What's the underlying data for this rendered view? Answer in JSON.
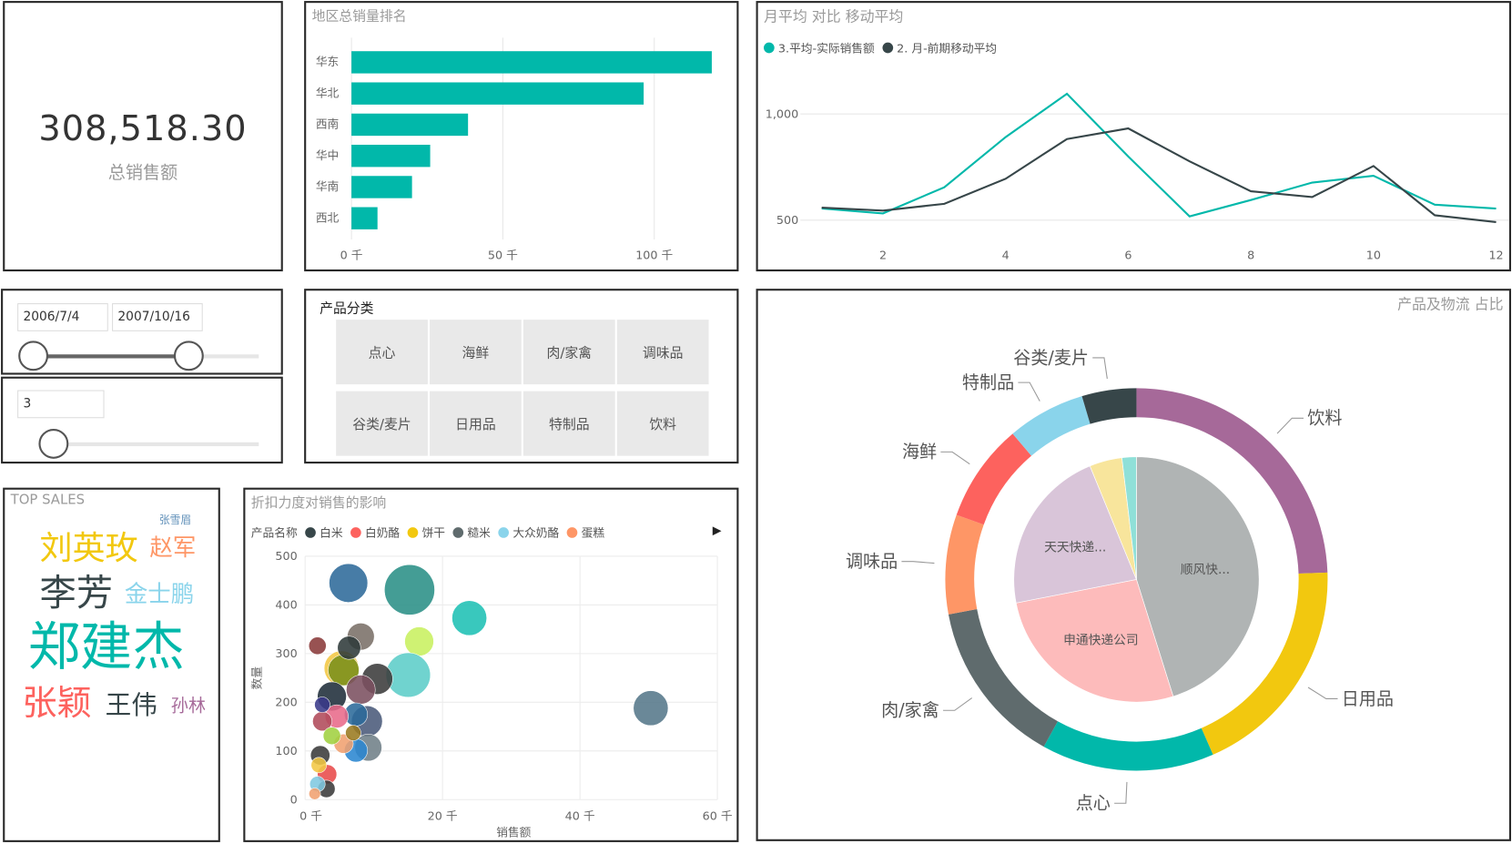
{
  "kpi": {
    "value": "308,518.30",
    "label": "总销售额"
  },
  "date_slicer": {
    "start": "2006/7/4",
    "end": "2007/10/16",
    "start_fraction": 0.0,
    "end_fraction": 0.69
  },
  "number_slicer": {
    "value": "3",
    "fraction": 0.09
  },
  "category_slicer": {
    "title": "产品分类",
    "items": [
      "点心",
      "海鲜",
      "肉/家禽",
      "调味品",
      "谷类/麦片",
      "日用品",
      "特制品",
      "饮料"
    ]
  },
  "top_sales": {
    "title": "TOP SALES",
    "words": [
      {
        "text": "郑建杰",
        "weight": 54,
        "color": "#01b8aa"
      },
      {
        "text": "李芳",
        "weight": 38,
        "color": "#374649"
      },
      {
        "text": "张颖",
        "weight": 36,
        "color": "#fd625e"
      },
      {
        "text": "刘英玫",
        "weight": 34,
        "color": "#f2c80f"
      },
      {
        "text": "王伟",
        "weight": 27,
        "color": "#374649"
      },
      {
        "text": "金士鹏",
        "weight": 24,
        "color": "#8ad4eb"
      },
      {
        "text": "赵军",
        "weight": 24,
        "color": "#fe9666"
      },
      {
        "text": "孙林",
        "weight": 18,
        "color": "#a66999"
      },
      {
        "text": "张雪眉",
        "weight": 11,
        "color": "#5f8fb8"
      }
    ]
  },
  "chart_data": [
    {
      "id": "region",
      "type": "bar",
      "title": "地区总销量排名",
      "orientation": "horizontal",
      "categories": [
        "华东",
        "华北",
        "西南",
        "华中",
        "华南",
        "西北"
      ],
      "values": [
        119000,
        96500,
        38500,
        26000,
        20000,
        8600
      ],
      "xlim": [
        0,
        125000
      ],
      "xticks": [
        0,
        50000,
        100000
      ],
      "xtick_labels": [
        "0 千",
        "50 千",
        "100 千"
      ],
      "color": "#01b8aa"
    },
    {
      "id": "monthly",
      "type": "line",
      "title": "月平均 对比 移动平均",
      "x": [
        1,
        2,
        3,
        4,
        5,
        6,
        7,
        8,
        9,
        10,
        11,
        12
      ],
      "series": [
        {
          "name": "3.平均-实际销售额",
          "color": "#01b8aa",
          "values": [
            555,
            532,
            655,
            891,
            1095,
            800,
            518,
            595,
            677,
            709,
            573,
            555
          ]
        },
        {
          "name": "2. 月-前期移动平均",
          "color": "#374649",
          "values": [
            559,
            545,
            577,
            695,
            882,
            932,
            777,
            636,
            609,
            755,
            523,
            491
          ]
        }
      ],
      "xticks": [
        2,
        4,
        6,
        8,
        10,
        12
      ],
      "xtick_labels": [
        "2",
        "4",
        "6",
        "8",
        "10",
        "12"
      ],
      "yticks": [
        500,
        1000
      ],
      "ytick_labels": [
        "500",
        "1,000"
      ],
      "ylim": [
        414,
        1255
      ],
      "grid": true,
      "legend": "top-left"
    },
    {
      "id": "discount",
      "type": "scatter",
      "title": "折扣力度对销售的影响",
      "xlabel": "销售额",
      "ylabel": "数量",
      "legend_title": "产品名称",
      "legend": [
        {
          "name": "白米",
          "color": "#374649"
        },
        {
          "name": "白奶酪",
          "color": "#fd625e"
        },
        {
          "name": "饼干",
          "color": "#f2c80f"
        },
        {
          "name": "糙米",
          "color": "#5f6b6d"
        },
        {
          "name": "大众奶酪",
          "color": "#8ad4eb"
        },
        {
          "name": "蛋糕",
          "color": "#fe9666"
        }
      ],
      "xlim": [
        0,
        60000
      ],
      "ylim": [
        0,
        500
      ],
      "xticks": [
        0,
        20000,
        40000,
        60000
      ],
      "xtick_labels": [
        "0 千",
        "20 千",
        "40 千",
        "60 千"
      ],
      "yticks": [
        0,
        100,
        200,
        300,
        400,
        500
      ],
      "ytick_labels": [
        "0",
        "100",
        "200",
        "300",
        "400",
        "500"
      ],
      "points": [
        {
          "x": 6300,
          "y": 445,
          "size": 20,
          "color": "#2e6a9a"
        },
        {
          "x": 15200,
          "y": 431,
          "size": 26,
          "color": "#2a8f86"
        },
        {
          "x": 23900,
          "y": 373,
          "size": 18,
          "color": "#1ec0b4"
        },
        {
          "x": 16600,
          "y": 325,
          "size": 15,
          "color": "#c8f060"
        },
        {
          "x": 15000,
          "y": 256,
          "size": 23,
          "color": "#5ccdc8"
        },
        {
          "x": 8100,
          "y": 335,
          "size": 14,
          "color": "#7a7068"
        },
        {
          "x": 5300,
          "y": 270,
          "size": 18,
          "color": "#f2c744"
        },
        {
          "x": 5600,
          "y": 266,
          "size": 16,
          "color": "#7a8f1a"
        },
        {
          "x": 6400,
          "y": 312,
          "size": 12,
          "color": "#2f3a3a"
        },
        {
          "x": 10500,
          "y": 248,
          "size": 16,
          "color": "#3b3b3b"
        },
        {
          "x": 8100,
          "y": 226,
          "size": 15,
          "color": "#7b5060"
        },
        {
          "x": 1800,
          "y": 316,
          "size": 9,
          "color": "#8a3a3a"
        },
        {
          "x": 50300,
          "y": 188,
          "size": 18,
          "color": "#55788a"
        },
        {
          "x": 3900,
          "y": 212,
          "size": 15,
          "color": "#1f2d3a"
        },
        {
          "x": 9000,
          "y": 161,
          "size": 16,
          "color": "#4a5a7a"
        },
        {
          "x": 7400,
          "y": 175,
          "size": 12,
          "color": "#2b6a9a"
        },
        {
          "x": 4600,
          "y": 171,
          "size": 12,
          "color": "#e86a8a"
        },
        {
          "x": 9200,
          "y": 107,
          "size": 14,
          "color": "#6f7f88"
        },
        {
          "x": 7400,
          "y": 101,
          "size": 12,
          "color": "#2a86d0"
        },
        {
          "x": 5600,
          "y": 115,
          "size": 10,
          "color": "#f0a070"
        },
        {
          "x": 7000,
          "y": 137,
          "size": 8,
          "color": "#9a7a20"
        },
        {
          "x": 2500,
          "y": 161,
          "size": 10,
          "color": "#b04a5a"
        },
        {
          "x": 3900,
          "y": 131,
          "size": 9,
          "color": "#a0d040"
        },
        {
          "x": 2200,
          "y": 91,
          "size": 10,
          "color": "#3a3a3a"
        },
        {
          "x": 3200,
          "y": 52,
          "size": 10,
          "color": "#e84a4a"
        },
        {
          "x": 3100,
          "y": 22,
          "size": 9,
          "color": "#3a3a3a"
        },
        {
          "x": 1800,
          "y": 32,
          "size": 8,
          "color": "#80c8e0"
        },
        {
          "x": 1400,
          "y": 12,
          "size": 6,
          "color": "#f0a070"
        },
        {
          "x": 2500,
          "y": 195,
          "size": 8,
          "color": "#3a3a8a"
        },
        {
          "x": 2000,
          "y": 71,
          "size": 8,
          "color": "#f2c744"
        }
      ]
    },
    {
      "id": "share",
      "type": "pie",
      "title": "产品及物流 占比",
      "outer_ring": [
        {
          "name": "饮料",
          "value": 24.4,
          "color": "#a66999"
        },
        {
          "name": "日用品",
          "value": 19.0,
          "color": "#f2c80f"
        },
        {
          "name": "点心",
          "value": 14.6,
          "color": "#01b8aa"
        },
        {
          "name": "肉/家禽",
          "value": 14.0,
          "color": "#5f6b6d"
        },
        {
          "name": "调味品",
          "value": 8.4,
          "color": "#fe9666"
        },
        {
          "name": "海鲜",
          "value": 8.3,
          "color": "#fd625e"
        },
        {
          "name": "特制品",
          "value": 6.6,
          "color": "#8ad4eb"
        },
        {
          "name": "谷类/麦片",
          "value": 4.6,
          "color": "#374649"
        }
      ],
      "inner_pie": [
        {
          "name": "顺风快...",
          "value": 45.2,
          "color": "#b0b4b4"
        },
        {
          "name": "申通快递公司",
          "value": 26.8,
          "color": "#fdbbbb"
        },
        {
          "name": "天天快递...",
          "value": 21.9,
          "color": "#d9c5d9"
        },
        {
          "name": "",
          "value": 4.3,
          "color": "#f8e59c"
        },
        {
          "name": "",
          "value": 1.9,
          "color": "#8fe0d8"
        }
      ]
    }
  ]
}
